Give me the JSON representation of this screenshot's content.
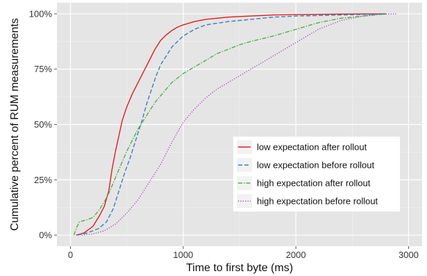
{
  "chart_data": {
    "type": "line",
    "title": "",
    "xlabel": "Time to first byte (ms)",
    "ylabel": "Cumulative percent of RUM measurements",
    "xlim": [
      -120,
      3120
    ],
    "ylim": [
      -0.05,
      1.05
    ],
    "x_ticks": [
      0,
      1000,
      2000,
      3000
    ],
    "x_tick_labels": [
      "0",
      "1000",
      "2000",
      "3000"
    ],
    "y_ticks": [
      0,
      0.25,
      0.5,
      0.75,
      1.0
    ],
    "y_tick_labels": [
      "0%",
      "25%",
      "50%",
      "75%",
      "100%"
    ],
    "grid": true,
    "panel_background": "#e5e5e5",
    "grid_color": "#ffffff",
    "legend_position": "bottom-right",
    "series": [
      {
        "name": "low expectation after rollout",
        "color": "#e41a1c",
        "dash": "solid",
        "points": [
          [
            50,
            0
          ],
          [
            120,
            0.01
          ],
          [
            200,
            0.04
          ],
          [
            260,
            0.09
          ],
          [
            300,
            0.13
          ],
          [
            340,
            0.2
          ],
          [
            370,
            0.3
          ],
          [
            400,
            0.38
          ],
          [
            430,
            0.45
          ],
          [
            460,
            0.52
          ],
          [
            500,
            0.58
          ],
          [
            550,
            0.64
          ],
          [
            600,
            0.69
          ],
          [
            650,
            0.74
          ],
          [
            700,
            0.79
          ],
          [
            750,
            0.84
          ],
          [
            800,
            0.88
          ],
          [
            850,
            0.905
          ],
          [
            900,
            0.925
          ],
          [
            950,
            0.94
          ],
          [
            1000,
            0.95
          ],
          [
            1100,
            0.965
          ],
          [
            1200,
            0.975
          ],
          [
            1400,
            0.985
          ],
          [
            1600,
            0.99
          ],
          [
            1800,
            0.995
          ],
          [
            2000,
            0.997
          ],
          [
            2400,
            0.999
          ],
          [
            2800,
            1.0
          ]
        ]
      },
      {
        "name": "low expectation before rollout",
        "color": "#377eb8",
        "dash": "dashed",
        "points": [
          [
            60,
            0
          ],
          [
            150,
            0.01
          ],
          [
            250,
            0.03
          ],
          [
            320,
            0.06
          ],
          [
            380,
            0.12
          ],
          [
            430,
            0.2
          ],
          [
            480,
            0.28
          ],
          [
            530,
            0.35
          ],
          [
            580,
            0.43
          ],
          [
            630,
            0.51
          ],
          [
            680,
            0.6
          ],
          [
            720,
            0.66
          ],
          [
            760,
            0.72
          ],
          [
            800,
            0.77
          ],
          [
            850,
            0.81
          ],
          [
            900,
            0.85
          ],
          [
            950,
            0.875
          ],
          [
            1000,
            0.9
          ],
          [
            1100,
            0.93
          ],
          [
            1200,
            0.95
          ],
          [
            1400,
            0.965
          ],
          [
            1600,
            0.975
          ],
          [
            1800,
            0.985
          ],
          [
            2000,
            0.99
          ],
          [
            2400,
            0.995
          ],
          [
            2800,
            1.0
          ]
        ]
      },
      {
        "name": "high expectation after rollout",
        "color": "#4daf4a",
        "dash": "dashdot",
        "points": [
          [
            30,
            0
          ],
          [
            60,
            0.04
          ],
          [
            80,
            0.06
          ],
          [
            150,
            0.07
          ],
          [
            200,
            0.08
          ],
          [
            250,
            0.11
          ],
          [
            300,
            0.15
          ],
          [
            350,
            0.2
          ],
          [
            400,
            0.26
          ],
          [
            450,
            0.32
          ],
          [
            500,
            0.38
          ],
          [
            550,
            0.43
          ],
          [
            600,
            0.48
          ],
          [
            650,
            0.52
          ],
          [
            700,
            0.56
          ],
          [
            750,
            0.6
          ],
          [
            800,
            0.63
          ],
          [
            850,
            0.66
          ],
          [
            900,
            0.69
          ],
          [
            950,
            0.71
          ],
          [
            1000,
            0.73
          ],
          [
            1100,
            0.76
          ],
          [
            1200,
            0.79
          ],
          [
            1300,
            0.82
          ],
          [
            1400,
            0.84
          ],
          [
            1500,
            0.86
          ],
          [
            1600,
            0.875
          ],
          [
            1800,
            0.9
          ],
          [
            2000,
            0.93
          ],
          [
            2200,
            0.96
          ],
          [
            2400,
            0.98
          ],
          [
            2600,
            0.99
          ],
          [
            2800,
            1.0
          ]
        ]
      },
      {
        "name": "high expectation before rollout",
        "color": "#984ea3",
        "dash": "dotted",
        "points": [
          [
            100,
            0
          ],
          [
            200,
            0.005
          ],
          [
            300,
            0.02
          ],
          [
            400,
            0.05
          ],
          [
            500,
            0.1
          ],
          [
            600,
            0.16
          ],
          [
            700,
            0.24
          ],
          [
            800,
            0.32
          ],
          [
            900,
            0.42
          ],
          [
            1000,
            0.51
          ],
          [
            1100,
            0.57
          ],
          [
            1200,
            0.62
          ],
          [
            1300,
            0.66
          ],
          [
            1400,
            0.69
          ],
          [
            1500,
            0.72
          ],
          [
            1600,
            0.75
          ],
          [
            1700,
            0.78
          ],
          [
            1800,
            0.81
          ],
          [
            1900,
            0.84
          ],
          [
            2000,
            0.87
          ],
          [
            2100,
            0.9
          ],
          [
            2200,
            0.93
          ],
          [
            2300,
            0.95
          ],
          [
            2400,
            0.97
          ],
          [
            2500,
            0.98
          ],
          [
            2600,
            0.99
          ],
          [
            2750,
            0.998
          ],
          [
            2900,
            1.0
          ]
        ]
      }
    ]
  }
}
